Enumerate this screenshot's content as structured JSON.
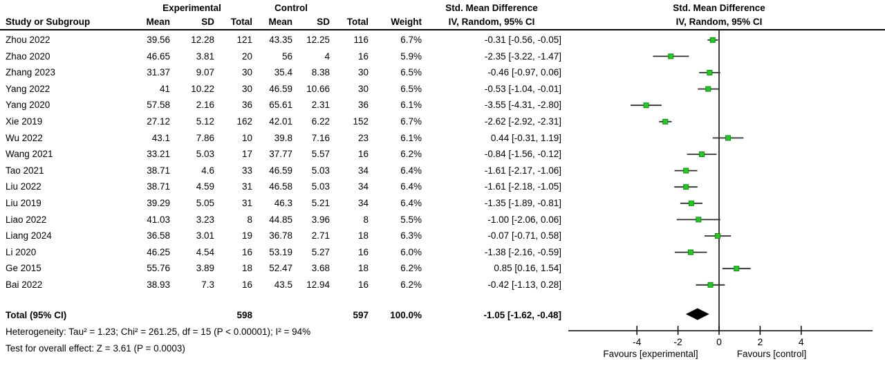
{
  "chart_data": {
    "type": "forest",
    "group_headers": {
      "experimental": "Experimental",
      "control": "Control",
      "smd": "Std. Mean Difference"
    },
    "columns": {
      "study": "Study or Subgroup",
      "mean": "Mean",
      "sd": "SD",
      "total": "Total",
      "weight": "Weight",
      "ci": "IV, Random, 95% CI"
    },
    "studies": [
      {
        "study": "Zhou 2022",
        "mean_e": "39.56",
        "sd_e": "12.28",
        "total_e": "121",
        "mean_c": "43.35",
        "sd_c": "12.25",
        "total_c": "116",
        "weight": "6.7%",
        "ci_text": "-0.31 [-0.56, -0.05]",
        "est": -0.31,
        "lo": -0.56,
        "hi": -0.05
      },
      {
        "study": "Zhao 2020",
        "mean_e": "46.65",
        "sd_e": "3.81",
        "total_e": "20",
        "mean_c": "56",
        "sd_c": "4",
        "total_c": "16",
        "weight": "5.9%",
        "ci_text": "-2.35 [-3.22, -1.47]",
        "est": -2.35,
        "lo": -3.22,
        "hi": -1.47
      },
      {
        "study": "Zhang 2023",
        "mean_e": "31.37",
        "sd_e": "9.07",
        "total_e": "30",
        "mean_c": "35.4",
        "sd_c": "8.38",
        "total_c": "30",
        "weight": "6.5%",
        "ci_text": "-0.46 [-0.97, 0.06]",
        "est": -0.46,
        "lo": -0.97,
        "hi": 0.06
      },
      {
        "study": "Yang 2022",
        "mean_e": "41",
        "sd_e": "10.22",
        "total_e": "30",
        "mean_c": "46.59",
        "sd_c": "10.66",
        "total_c": "30",
        "weight": "6.5%",
        "ci_text": "-0.53 [-1.04, -0.01]",
        "est": -0.53,
        "lo": -1.04,
        "hi": -0.01
      },
      {
        "study": "Yang 2020",
        "mean_e": "57.58",
        "sd_e": "2.16",
        "total_e": "36",
        "mean_c": "65.61",
        "sd_c": "2.31",
        "total_c": "36",
        "weight": "6.1%",
        "ci_text": "-3.55 [-4.31, -2.80]",
        "est": -3.55,
        "lo": -4.31,
        "hi": -2.8
      },
      {
        "study": "Xie 2019",
        "mean_e": "27.12",
        "sd_e": "5.12",
        "total_e": "162",
        "mean_c": "42.01",
        "sd_c": "6.22",
        "total_c": "152",
        "weight": "6.7%",
        "ci_text": "-2.62 [-2.92, -2.31]",
        "est": -2.62,
        "lo": -2.92,
        "hi": -2.31
      },
      {
        "study": "Wu 2022",
        "mean_e": "43.1",
        "sd_e": "7.86",
        "total_e": "10",
        "mean_c": "39.8",
        "sd_c": "7.16",
        "total_c": "23",
        "weight": "6.1%",
        "ci_text": "0.44 [-0.31, 1.19]",
        "est": 0.44,
        "lo": -0.31,
        "hi": 1.19
      },
      {
        "study": "Wang 2021",
        "mean_e": "33.21",
        "sd_e": "5.03",
        "total_e": "17",
        "mean_c": "37.77",
        "sd_c": "5.57",
        "total_c": "16",
        "weight": "6.2%",
        "ci_text": "-0.84 [-1.56, -0.12]",
        "est": -0.84,
        "lo": -1.56,
        "hi": -0.12
      },
      {
        "study": "Tao 2021",
        "mean_e": "38.71",
        "sd_e": "4.6",
        "total_e": "33",
        "mean_c": "46.59",
        "sd_c": "5.03",
        "total_c": "34",
        "weight": "6.4%",
        "ci_text": "-1.61 [-2.17, -1.06]",
        "est": -1.61,
        "lo": -2.17,
        "hi": -1.06
      },
      {
        "study": "Liu 2022",
        "mean_e": "38.71",
        "sd_e": "4.59",
        "total_e": "31",
        "mean_c": "46.58",
        "sd_c": "5.03",
        "total_c": "34",
        "weight": "6.4%",
        "ci_text": "-1.61 [-2.18, -1.05]",
        "est": -1.61,
        "lo": -2.18,
        "hi": -1.05
      },
      {
        "study": "Liu 2019",
        "mean_e": "39.29",
        "sd_e": "5.05",
        "total_e": "31",
        "mean_c": "46.3",
        "sd_c": "5.21",
        "total_c": "34",
        "weight": "6.4%",
        "ci_text": "-1.35 [-1.89, -0.81]",
        "est": -1.35,
        "lo": -1.89,
        "hi": -0.81
      },
      {
        "study": "Liao 2022",
        "mean_e": "41.03",
        "sd_e": "3.23",
        "total_e": "8",
        "mean_c": "44.85",
        "sd_c": "3.96",
        "total_c": "8",
        "weight": "5.5%",
        "ci_text": "-1.00 [-2.06, 0.06]",
        "est": -1.0,
        "lo": -2.06,
        "hi": 0.06
      },
      {
        "study": "Liang 2024",
        "mean_e": "36.58",
        "sd_e": "3.01",
        "total_e": "19",
        "mean_c": "36.78",
        "sd_c": "2.71",
        "total_c": "18",
        "weight": "6.3%",
        "ci_text": "-0.07 [-0.71, 0.58]",
        "est": -0.07,
        "lo": -0.71,
        "hi": 0.58
      },
      {
        "study": "Li 2020",
        "mean_e": "46.25",
        "sd_e": "4.54",
        "total_e": "16",
        "mean_c": "53.19",
        "sd_c": "5.27",
        "total_c": "16",
        "weight": "6.0%",
        "ci_text": "-1.38 [-2.16, -0.59]",
        "est": -1.38,
        "lo": -2.16,
        "hi": -0.59
      },
      {
        "study": "Ge 2015",
        "mean_e": "55.76",
        "sd_e": "3.89",
        "total_e": "18",
        "mean_c": "52.47",
        "sd_c": "3.68",
        "total_c": "18",
        "weight": "6.2%",
        "ci_text": "0.85 [0.16, 1.54]",
        "est": 0.85,
        "lo": 0.16,
        "hi": 1.54
      },
      {
        "study": "Bai 2022",
        "mean_e": "38.93",
        "sd_e": "7.3",
        "total_e": "16",
        "mean_c": "43.5",
        "sd_c": "12.94",
        "total_c": "16",
        "weight": "6.2%",
        "ci_text": "-0.42 [-1.13, 0.28]",
        "est": -0.42,
        "lo": -1.13,
        "hi": 0.28
      }
    ],
    "total": {
      "label": "Total (95% CI)",
      "total_e": "598",
      "total_c": "597",
      "weight": "100.0%",
      "ci_text": "-1.05 [-1.62, -0.48]",
      "est": -1.05,
      "lo": -1.62,
      "hi": -0.48
    },
    "footnotes": [
      "Heterogeneity: Tau² = 1.23; Chi² = 261.25, df = 15 (P < 0.00001); I² = 94%",
      "Test for overall effect: Z = 3.61 (P = 0.0003)"
    ],
    "axis": {
      "ticks": [
        -4,
        -2,
        0,
        2,
        4
      ],
      "favours_left": "Favours [experimental]",
      "favours_right": "Favours [control]"
    },
    "colors": {
      "marker": "#28c428",
      "marker_edge": "#0c8f0c",
      "ci_line": "#2e2e2e",
      "diamond": "#000000",
      "axis": "#000000"
    }
  }
}
